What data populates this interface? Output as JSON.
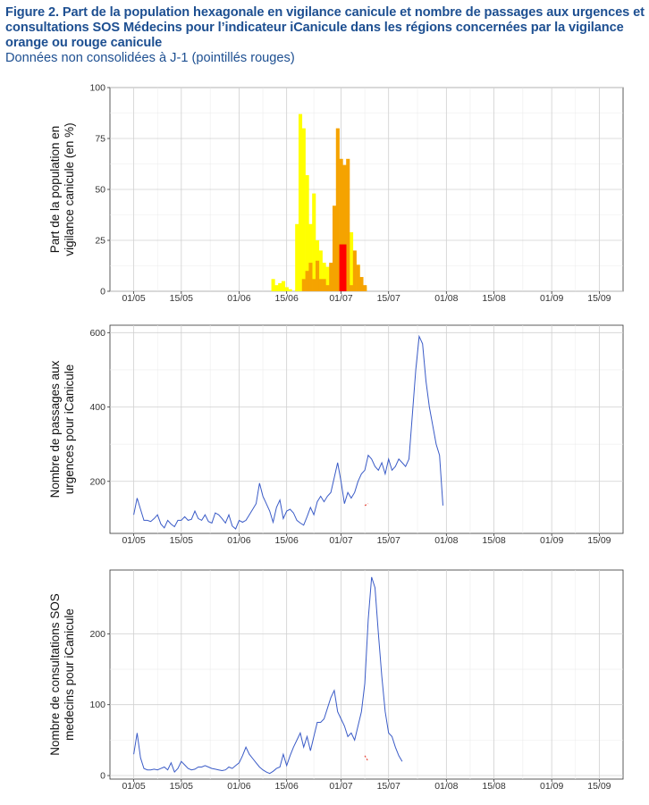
{
  "header": {
    "title": "Figure 2. Part de la population hexagonale en vigilance canicule et nombre de passages aux urgences et consultations SOS Médecins pour l’indicateur iCanicule dans les régions concernées par la vigilance orange ou rouge canicule",
    "subtitle": "Données non consolidées à J-1 (pointillés rouges)"
  },
  "colors": {
    "yellow": "#ffff00",
    "orange": "#f5a300",
    "red": "#ff0000",
    "line": "#3a5bc7",
    "provisional": "#e8483c",
    "grid": "#d0d0d0"
  },
  "x_ticks": [
    "01/05",
    "15/05",
    "01/06",
    "15/06",
    "01/07",
    "15/07",
    "01/08",
    "15/08",
    "01/09",
    "15/09"
  ],
  "chart_data": [
    {
      "type": "bar",
      "ylabel": "Part de la population en vigilance canicule (en %)",
      "ylabel_lines": [
        "Part de la population en",
        "vigilance canicule (en %)"
      ],
      "ylim": [
        0,
        100
      ],
      "yticks": [
        0,
        25,
        50,
        75,
        100
      ],
      "xlim": [
        "2025-04-24",
        "2025-09-22"
      ],
      "grid": true,
      "stacked": true,
      "series": [
        {
          "color": "yellow",
          "x": [
            "2025-06-11",
            "2025-06-12",
            "2025-06-13",
            "2025-06-14",
            "2025-06-15",
            "2025-06-16",
            "2025-06-17",
            "2025-06-18",
            "2025-06-19",
            "2025-06-20",
            "2025-06-21",
            "2025-06-22",
            "2025-06-23",
            "2025-06-24",
            "2025-06-25",
            "2025-06-26",
            "2025-06-27",
            "2025-06-28",
            "2025-06-29",
            "2025-06-30",
            "2025-07-01",
            "2025-07-02",
            "2025-07-03",
            "2025-07-04",
            "2025-07-05",
            "2025-07-06",
            "2025-07-07",
            "2025-07-08"
          ],
          "values": [
            6,
            3,
            4,
            5,
            2,
            1,
            0,
            33,
            87,
            80,
            57,
            33,
            48,
            25,
            20,
            14,
            12,
            0,
            2,
            5,
            5,
            8,
            20,
            29,
            15,
            13,
            6,
            2
          ]
        },
        {
          "color": "orange",
          "x": [
            "2025-06-20",
            "2025-06-21",
            "2025-06-22",
            "2025-06-23",
            "2025-06-24",
            "2025-06-25",
            "2025-06-26",
            "2025-06-27",
            "2025-06-28",
            "2025-06-29",
            "2025-06-30",
            "2025-07-01",
            "2025-07-02",
            "2025-07-03",
            "2025-07-04",
            "2025-07-05",
            "2025-07-06",
            "2025-07-07",
            "2025-07-08"
          ],
          "values": [
            6,
            10,
            14,
            6,
            15,
            6,
            6,
            3,
            14,
            42,
            80,
            65,
            62,
            65,
            3,
            20,
            13,
            7,
            3
          ]
        },
        {
          "color": "red",
          "x": [
            "2025-07-01",
            "2025-07-02"
          ],
          "values": [
            23,
            23
          ]
        }
      ]
    },
    {
      "type": "line",
      "ylabel": "Nombre de passages aux urgences pour iCanicule",
      "ylabel_lines": [
        "Nombre de passages aux",
        "urgences pour iCanicule"
      ],
      "ylim": [
        60,
        620
      ],
      "yticks": [
        200,
        400,
        600
      ],
      "xlim": [
        "2025-04-24",
        "2025-09-22"
      ],
      "grid": true,
      "series": [
        {
          "color": "line",
          "start": "2025-05-01",
          "values": [
            110,
            155,
            125,
            95,
            95,
            92,
            100,
            110,
            85,
            75,
            95,
            85,
            78,
            95,
            95,
            105,
            95,
            98,
            120,
            100,
            95,
            110,
            92,
            88,
            115,
            110,
            100,
            88,
            110,
            80,
            72,
            95,
            90,
            95,
            110,
            125,
            140,
            195,
            160,
            140,
            120,
            90,
            130,
            150,
            100,
            120,
            125,
            115,
            95,
            88,
            82,
            105,
            130,
            110,
            145,
            160,
            145,
            160,
            170,
            210,
            250,
            200,
            140,
            170,
            155,
            170,
            200,
            220,
            230,
            270,
            260,
            240,
            230,
            250,
            220,
            260,
            230,
            240,
            260,
            250,
            240,
            260,
            380,
            500,
            590,
            570,
            470,
            400,
            350,
            300,
            270,
            135
          ]
        }
      ],
      "provisional": {
        "color": "provisional",
        "start": "2025-07-08",
        "values": [
          135,
          140
        ]
      }
    },
    {
      "type": "line",
      "ylabel": "Nombre de consultations SOS medecins pour iCanicule",
      "ylabel_lines": [
        "Nombre de consultations SOS",
        "medecins pour iCanicule"
      ],
      "ylim": [
        -5,
        290
      ],
      "yticks": [
        0,
        100,
        200
      ],
      "xlim": [
        "2025-04-24",
        "2025-09-22"
      ],
      "grid": true,
      "series": [
        {
          "color": "line",
          "start": "2025-05-01",
          "values": [
            30,
            60,
            25,
            10,
            8,
            8,
            9,
            8,
            10,
            12,
            8,
            18,
            5,
            10,
            20,
            15,
            10,
            8,
            9,
            12,
            12,
            14,
            12,
            10,
            9,
            8,
            7,
            8,
            12,
            10,
            14,
            18,
            28,
            40,
            30,
            24,
            18,
            12,
            8,
            5,
            3,
            6,
            10,
            12,
            30,
            14,
            28,
            40,
            50,
            60,
            40,
            55,
            35,
            55,
            75,
            75,
            80,
            95,
            110,
            120,
            90,
            80,
            70,
            55,
            60,
            50,
            70,
            90,
            130,
            220,
            280,
            265,
            200,
            140,
            90,
            60,
            55,
            40,
            28,
            20
          ]
        }
      ],
      "provisional": {
        "color": "provisional",
        "start": "2025-07-08",
        "values": [
          28,
          20
        ]
      }
    }
  ]
}
